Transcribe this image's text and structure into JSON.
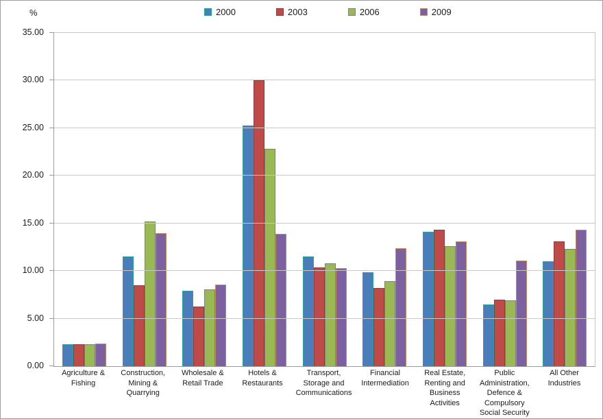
{
  "chart_data": {
    "type": "bar",
    "title": "",
    "ylabel_unit": "%",
    "xlabel": "",
    "ylim": [
      0,
      35
    ],
    "y_step": 5,
    "y_ticks": [
      "0.00",
      "5.00",
      "10.00",
      "15.00",
      "20.00",
      "25.00",
      "30.00",
      "35.00"
    ],
    "grid": true,
    "legend_position": "top-center",
    "categories": [
      "Agriculture & Fishing",
      "Construction, Mining & Quarrying",
      "Wholesale & Retail Trade",
      "Hotels & Restaurants",
      "Transport, Storage and Communications",
      "Financial Intermediation",
      "Real Estate, Renting and Business Activities",
      "Public Administration, Defence & Compulsory Social Security",
      "All Other Industries"
    ],
    "series": [
      {
        "name": "2000",
        "fill": "#4A7EBB",
        "border": "#2BA09A",
        "values": [
          2.3,
          11.5,
          7.9,
          25.3,
          11.5,
          9.9,
          14.1,
          6.5,
          11.0
        ]
      },
      {
        "name": "2003",
        "fill": "#BE4B48",
        "border": "#8C3B39",
        "values": [
          2.3,
          8.5,
          6.3,
          30.0,
          10.4,
          8.2,
          14.3,
          7.0,
          13.1
        ]
      },
      {
        "name": "2006",
        "fill": "#98B954",
        "border": "#7F7F72",
        "values": [
          2.3,
          15.2,
          8.1,
          22.8,
          10.8,
          8.9,
          12.6,
          6.9,
          12.3
        ]
      },
      {
        "name": "2009",
        "fill": "#7D60A0",
        "border": "#C58A5E",
        "values": [
          2.4,
          14.0,
          8.6,
          13.9,
          10.3,
          12.4,
          13.1,
          11.1,
          14.3
        ]
      }
    ],
    "colors": {
      "gridline": "#c9c9c9",
      "axis": "#9b9b9b",
      "plot_border": "#c6c6c6"
    }
  }
}
